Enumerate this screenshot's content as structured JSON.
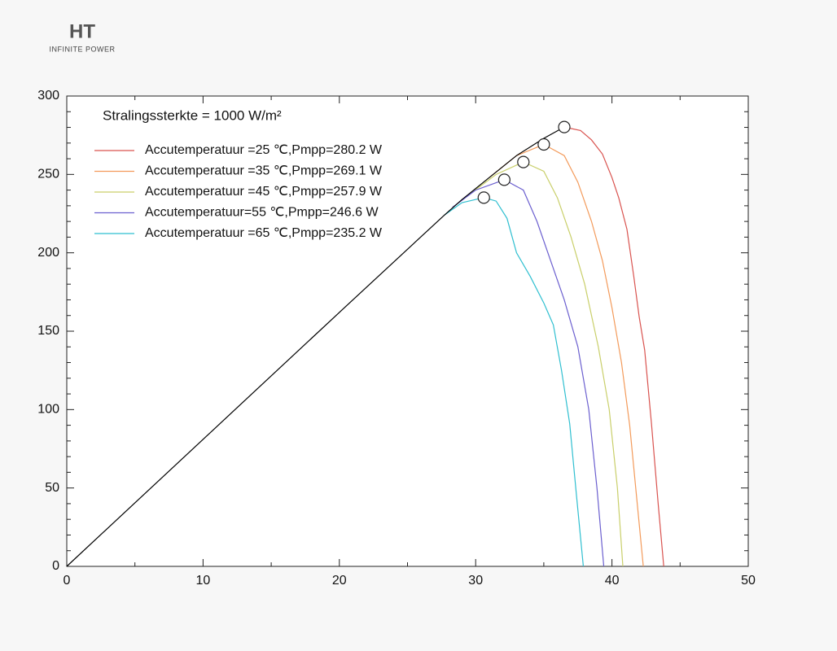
{
  "logo": {
    "title": "HT",
    "subtitle": "INFINITE POWER"
  },
  "chart_data": {
    "type": "line",
    "annotation": "Stralingssterkte = 1000 W/m²",
    "xlim": [
      0,
      50
    ],
    "xticks": [
      0,
      10,
      20,
      30,
      40,
      50
    ],
    "xminorticks": [
      5,
      15,
      25,
      35,
      45
    ],
    "ylim": [
      0,
      300
    ],
    "yticks": [
      0,
      50,
      100,
      150,
      200,
      250,
      300
    ],
    "yminorticks": [
      10,
      20,
      30,
      40,
      60,
      70,
      80,
      90,
      110,
      120,
      130,
      140,
      160,
      170,
      180,
      190,
      210,
      220,
      230,
      240,
      260,
      270,
      280,
      290
    ],
    "envelope": {
      "color": "#000000",
      "x": [
        0,
        10,
        20,
        27.7,
        29,
        31,
        33,
        35,
        36.5
      ],
      "values": [
        0,
        81,
        162,
        224,
        234,
        248,
        262,
        273,
        280.2
      ]
    },
    "series": [
      {
        "name": "Accutemperatuur =25 ℃,Pmpp=280.2 W",
        "color": "#d9534f",
        "x": [
          36.5,
          37.7,
          38.5,
          39.3,
          40,
          40.5,
          41.1,
          41.6,
          42,
          42.4,
          42.9,
          43.4,
          43.8
        ],
        "values": [
          280.2,
          278,
          272,
          263,
          248,
          235,
          215,
          185,
          159,
          138,
          91,
          39,
          0
        ]
      },
      {
        "name": "Accutemperatuur =35 ℃,Pmpp=269.1 W",
        "color": "#f39a5a",
        "x": [
          31,
          33,
          35,
          36.5,
          37.5,
          38.5,
          39.3,
          40,
          40.7,
          41.3,
          41.8,
          42.3
        ],
        "values": [
          248,
          262,
          269.1,
          262,
          245,
          220,
          195,
          165,
          130,
          90,
          45,
          0
        ]
      },
      {
        "name": "Accutemperatuur =45 ℃,Pmpp=257.9 W",
        "color": "#c9cf6a",
        "x": [
          29.5,
          31.5,
          33.5,
          35,
          36,
          37,
          38,
          39,
          39.8,
          40.4,
          40.8
        ],
        "values": [
          237,
          250,
          257.9,
          252,
          235,
          210,
          180,
          140,
          100,
          50,
          0
        ]
      },
      {
        "name": "Accutemperatuur=55 ℃,Pmpp=246.6 W",
        "color": "#6b5fcf",
        "x": [
          28.3,
          30,
          32.1,
          33.5,
          34.5,
          35.5,
          36.5,
          37.5,
          38.3,
          38.9,
          39.4
        ],
        "values": [
          229,
          240,
          246.6,
          240,
          220,
          195,
          170,
          140,
          100,
          50,
          0
        ]
      },
      {
        "name": "Accutemperatuur =65 ℃,Pmpp=235.2 W",
        "color": "#2fbfd0",
        "x": [
          27.7,
          29,
          30.6,
          31.5,
          32.3,
          33,
          34,
          35,
          35.7,
          36.3,
          36.9,
          37.4,
          37.9
        ],
        "values": [
          224,
          232,
          235.2,
          233,
          222,
          200,
          185,
          168,
          154,
          125,
          91,
          45,
          0
        ]
      }
    ],
    "markers": {
      "x": [
        36.5,
        35,
        33.5,
        32.1,
        30.6
      ],
      "values": [
        280.2,
        269.1,
        257.9,
        246.6,
        235.2
      ]
    }
  }
}
